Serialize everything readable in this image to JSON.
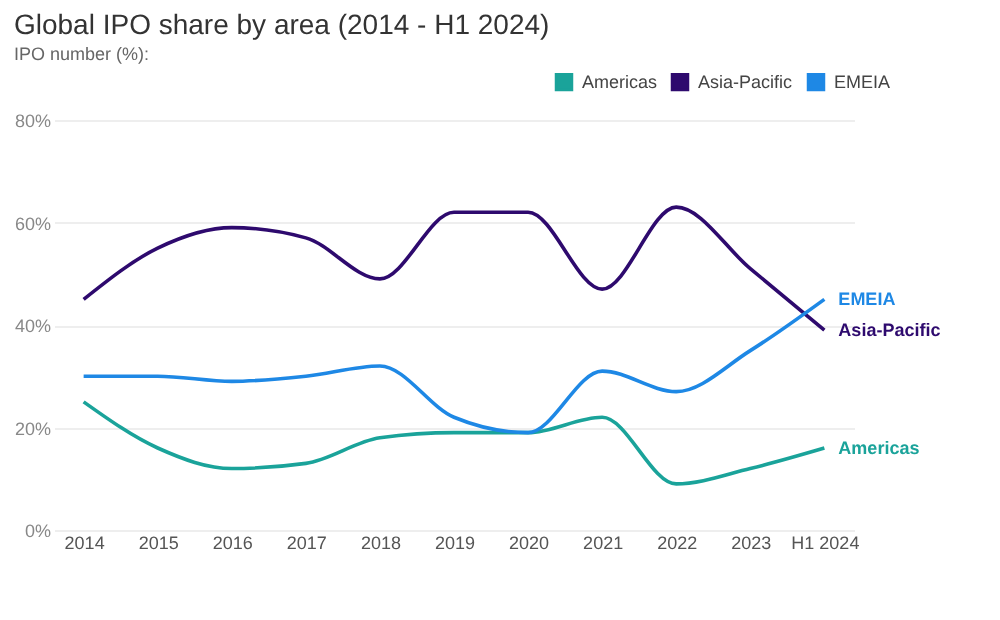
{
  "chart_data": {
    "type": "line",
    "title": "Global IPO share by area (2014 - H1 2024)",
    "subtitle": "IPO number (%):",
    "categories": [
      "2014",
      "2015",
      "2016",
      "2017",
      "2018",
      "2019",
      "2020",
      "2021",
      "2022",
      "2023",
      "H1 2024"
    ],
    "series": [
      {
        "name": "Americas",
        "color": "#1aa39a",
        "values": [
          25,
          16,
          12,
          13,
          18,
          19,
          19,
          22,
          9,
          12,
          16
        ]
      },
      {
        "name": "Asia-Pacific",
        "color": "#2e0a6e",
        "values": [
          45,
          55,
          59,
          57,
          49,
          62,
          62,
          47,
          63,
          51,
          39
        ]
      },
      {
        "name": "EMEIA",
        "color": "#1e88e5",
        "values": [
          30,
          30,
          29,
          30,
          32,
          22,
          19,
          31,
          27,
          35,
          45
        ]
      }
    ],
    "ylim": [
      0,
      80
    ],
    "yticks": [
      {
        "value": 0,
        "label": "0%"
      },
      {
        "value": 20,
        "label": "20%"
      },
      {
        "value": 40,
        "label": "40%"
      },
      {
        "value": 60,
        "label": "60%"
      },
      {
        "value": 80,
        "label": "80%"
      }
    ],
    "grid": "y",
    "legend": "top right",
    "marker": "none",
    "line_style": "solid"
  }
}
